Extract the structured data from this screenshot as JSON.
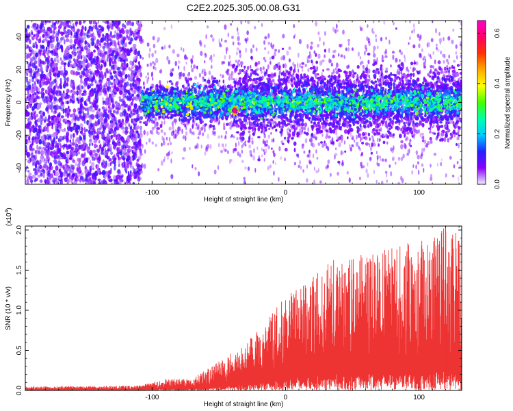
{
  "title": "C2E2.2025.305.00.08.G31",
  "chart_data": [
    {
      "type": "heatmap",
      "name": "spectrogram",
      "xlabel": "Height of straight line (km)",
      "ylabel": "Frequency (Hz)",
      "xlim": [
        -195,
        132
      ],
      "ylim": [
        -50,
        50
      ],
      "xticks": [
        -100,
        0,
        100
      ],
      "yticks": [
        -40,
        -20,
        0,
        20,
        40
      ],
      "colorbar": {
        "label": "Normalized spectral amplitude",
        "range": [
          0.0,
          0.65
        ],
        "ticks": [
          0.0,
          0.2,
          0.4,
          0.6
        ],
        "colors": [
          "#f0f0ff",
          "#8800ff",
          "#2222ff",
          "#00ccff",
          "#00ffaa",
          "#44ff00",
          "#ffff00",
          "#ffaa00",
          "#ff3300",
          "#ff0066",
          "#ff00cc"
        ]
      },
      "regions": [
        {
          "x_range": [
            -195,
            -108
          ],
          "freq_spread": 50,
          "amplitude": 0.08,
          "description_level": "noise"
        },
        {
          "x_range": [
            -108,
            132
          ],
          "freq_center": 0,
          "freq_spread": 8,
          "amplitude": 0.35
        }
      ],
      "peak": {
        "x": -38,
        "y": -5,
        "amplitude": 0.6
      }
    },
    {
      "type": "area",
      "name": "snr",
      "xlabel": "Height of straight line (km)",
      "ylabel": "SNR (10 * v/v)",
      "multiplier_label": "(x10",
      "multiplier_exp": "4",
      "multiplier_close": ")",
      "xlim": [
        -195,
        132
      ],
      "ylim": [
        0,
        2.05
      ],
      "xticks": [
        -100,
        0,
        100
      ],
      "yticks": [
        0.0,
        0.5,
        1.0,
        1.5,
        2.0
      ],
      "ytick_labels": [
        "0.0",
        "0.5",
        "1.0",
        "1.5",
        "2.0"
      ],
      "color": "#ee3333",
      "envelope": [
        {
          "x": -195,
          "y": 0.04
        },
        {
          "x": -110,
          "y": 0.05
        },
        {
          "x": -90,
          "y": 0.12
        },
        {
          "x": -70,
          "y": 0.12
        },
        {
          "x": -50,
          "y": 0.3
        },
        {
          "x": -30,
          "y": 0.5
        },
        {
          "x": -15,
          "y": 0.7
        },
        {
          "x": 0,
          "y": 1.0
        },
        {
          "x": 20,
          "y": 1.2
        },
        {
          "x": 40,
          "y": 1.4
        },
        {
          "x": 60,
          "y": 1.45
        },
        {
          "x": 80,
          "y": 1.5
        },
        {
          "x": 100,
          "y": 1.55
        },
        {
          "x": 120,
          "y": 1.75
        },
        {
          "x": 132,
          "y": 1.6
        }
      ],
      "peak": {
        "x": 120,
        "y": 2.05
      }
    }
  ]
}
